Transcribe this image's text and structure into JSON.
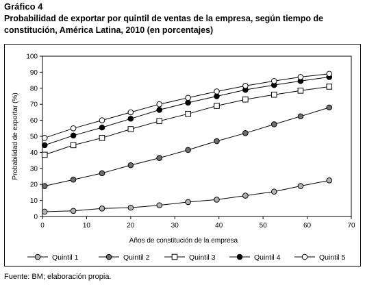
{
  "figure": {
    "label": "Gráfico 4",
    "title": "Probabilidad de exportar por quintil de ventas de la empresa, según tiempo de constitución, América Latina, 2010 (en porcentajes)",
    "source": "Fuente: BM; elaboración propia."
  },
  "chart_data": {
    "type": "line",
    "title": "",
    "xlabel": "Años de constitución de la empresa",
    "ylabel": "Probabilidad de exportar (%)",
    "xlim": [
      0,
      70
    ],
    "ylim": [
      0,
      100
    ],
    "xticks": [
      0,
      10,
      20,
      30,
      40,
      50,
      60,
      70
    ],
    "yticks": [
      0,
      10,
      20,
      30,
      40,
      50,
      60,
      70,
      80,
      90,
      100
    ],
    "grid": false,
    "legend_position": "bottom",
    "series": [
      {
        "name": "Quintil 1",
        "marker": "circle",
        "fill": "#b3b3b3",
        "x": [
          0.5,
          7,
          13.5,
          20,
          26.5,
          33,
          39.5,
          46,
          52.5,
          58.5,
          65
        ],
        "y": [
          3,
          3.5,
          5,
          5.5,
          7,
          9,
          10.5,
          13,
          15.5,
          19,
          22.5
        ]
      },
      {
        "name": "Quintil 2",
        "marker": "circle",
        "fill": "#6e6e6e",
        "x": [
          0.5,
          7,
          13.5,
          20,
          26.5,
          33,
          39.5,
          46,
          52.5,
          58.5,
          65
        ],
        "y": [
          19,
          23,
          27,
          32,
          36.5,
          41.5,
          47,
          52,
          57.5,
          62.5,
          68
        ]
      },
      {
        "name": "Quintil 3",
        "marker": "square",
        "fill": "#ffffff",
        "x": [
          0.5,
          7,
          13.5,
          20,
          26.5,
          33,
          39.5,
          46,
          52.5,
          58.5,
          65
        ],
        "y": [
          38.5,
          44.5,
          49,
          54.5,
          59.5,
          64,
          69,
          73,
          76,
          78.5,
          81
        ]
      },
      {
        "name": "Quintil 4",
        "marker": "circle",
        "fill": "#000000",
        "x": [
          0.5,
          7,
          13.5,
          20,
          26.5,
          33,
          39.5,
          46,
          52.5,
          58.5,
          65
        ],
        "y": [
          44.5,
          50.5,
          55.5,
          61,
          66.5,
          71,
          75,
          79,
          82,
          84.5,
          87
        ]
      },
      {
        "name": "Quintil 5",
        "marker": "circle",
        "fill": "#ffffff",
        "x": [
          0.5,
          7,
          13.5,
          20,
          26.5,
          33,
          39.5,
          46,
          52.5,
          58.5,
          65
        ],
        "y": [
          49,
          55,
          60,
          65,
          70,
          74,
          78,
          81.5,
          84.5,
          87,
          89
        ]
      }
    ]
  }
}
